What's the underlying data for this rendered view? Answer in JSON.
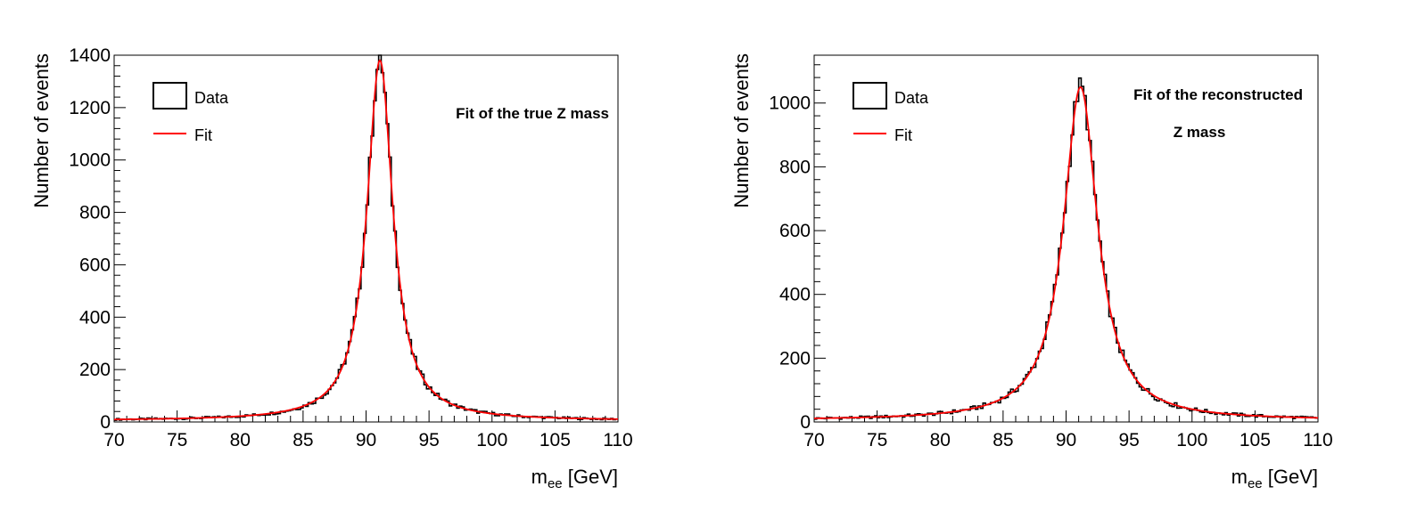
{
  "chart_data": [
    {
      "type": "histogram",
      "xlabel_main": "m",
      "xlabel_sub": "ee",
      "xlabel_unit": "[GeV]",
      "ylabel": "Number of events",
      "xlim": [
        70,
        110
      ],
      "ylim": [
        0,
        1400
      ],
      "x_ticks": [
        "70",
        "75",
        "80",
        "85",
        "90",
        "95",
        "100",
        "105",
        "110"
      ],
      "y_ticks": [
        "0",
        "200",
        "400",
        "600",
        "800",
        "1000",
        "1200",
        "1400"
      ],
      "y_tick_values": [
        0,
        200,
        400,
        600,
        800,
        1000,
        1200,
        1400
      ],
      "annotation_lines": [
        "Fit of the true Z mass"
      ],
      "legend": {
        "placement": "top-left",
        "entries": [
          {
            "label": "Data",
            "style": "box",
            "color": "#000000"
          },
          {
            "label": "Fit",
            "style": "line",
            "color": "#ff0000"
          }
        ]
      },
      "model": {
        "peak_center": 91.1,
        "peak_height": 1380,
        "width": 1.25,
        "background": 5
      },
      "bins": {
        "start": 70,
        "end": 110,
        "width": 0.2
      },
      "series": [
        {
          "name": "Data",
          "color": "#000000"
        },
        {
          "name": "Fit",
          "color": "#ff0000"
        }
      ],
      "grid": false
    },
    {
      "type": "histogram",
      "xlabel_main": "m",
      "xlabel_sub": "ee",
      "xlabel_unit": "[GeV]",
      "ylabel": "Number of events",
      "xlim": [
        70,
        110
      ],
      "ylim": [
        0,
        1150
      ],
      "x_ticks": [
        "70",
        "75",
        "80",
        "85",
        "90",
        "95",
        "100",
        "105",
        "110"
      ],
      "y_ticks": [
        "0",
        "200",
        "400",
        "600",
        "800",
        "1000"
      ],
      "y_tick_values": [
        0,
        200,
        400,
        600,
        800,
        1000
      ],
      "annotation_lines": [
        "Fit of the reconstructed",
        "Z mass"
      ],
      "legend": {
        "placement": "top-left",
        "entries": [
          {
            "label": "Data",
            "style": "box",
            "color": "#000000"
          },
          {
            "label": "Fit",
            "style": "line",
            "color": "#ff0000"
          }
        ]
      },
      "model": {
        "peak_center": 91.15,
        "peak_height": 1050,
        "width": 1.65,
        "background": 5
      },
      "bins": {
        "start": 70,
        "end": 110,
        "width": 0.2
      },
      "series": [
        {
          "name": "Data",
          "color": "#000000"
        },
        {
          "name": "Fit",
          "color": "#ff0000"
        }
      ],
      "grid": false
    }
  ]
}
